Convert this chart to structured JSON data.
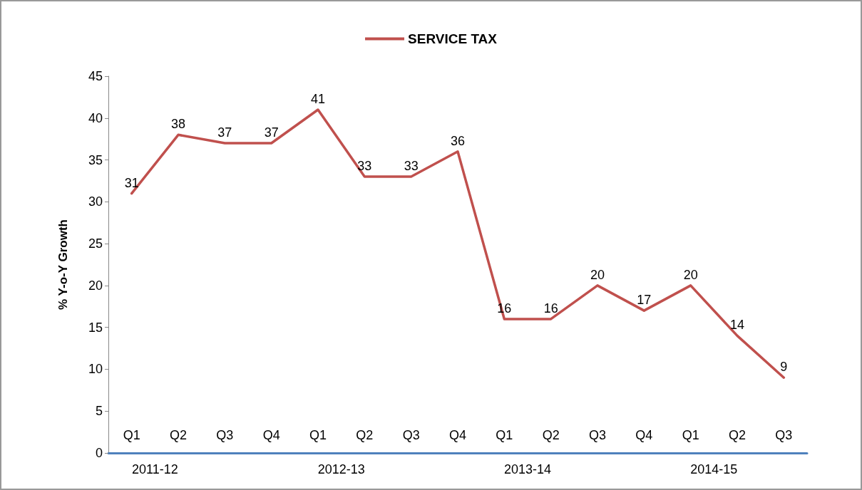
{
  "chart_data": {
    "type": "line",
    "ylabel": "% Y-o-Y Growth",
    "categories": [
      "Q1",
      "Q2",
      "Q3",
      "Q4",
      "Q1",
      "Q2",
      "Q3",
      "Q4",
      "Q1",
      "Q2",
      "Q3",
      "Q4",
      "Q1",
      "Q2",
      "Q3"
    ],
    "series": [
      {
        "name": "SERVICE TAX",
        "color": "#c0504d",
        "values": [
          31,
          38,
          37,
          37,
          41,
          33,
          33,
          36,
          16,
          16,
          20,
          17,
          20,
          14,
          9
        ]
      }
    ],
    "ylim": [
      0,
      45
    ],
    "yticks": [
      0,
      5,
      10,
      15,
      20,
      25,
      30,
      35,
      40,
      45
    ],
    "grid": false,
    "legend": "top",
    "marker": "none",
    "line_style": "solid",
    "data_labels": true,
    "annotations": [
      "2011-12",
      "2012-13",
      "2013-14",
      "2014-15"
    ]
  }
}
